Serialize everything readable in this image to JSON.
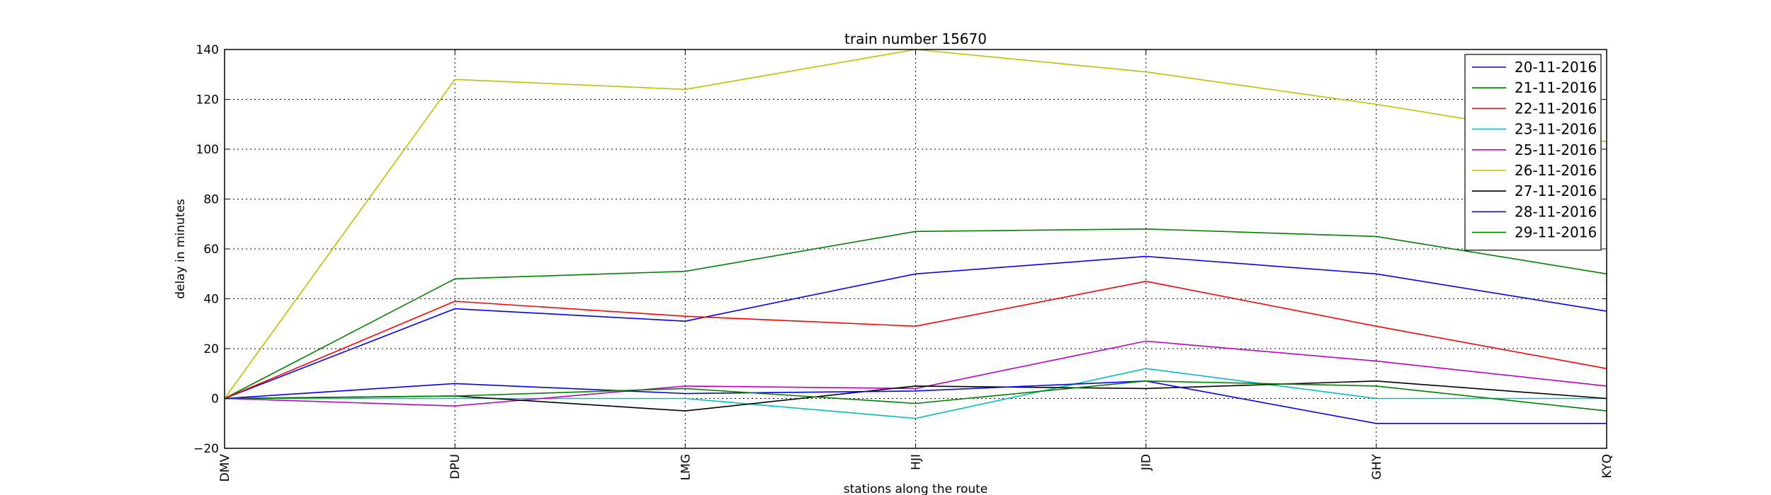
{
  "chart_data": {
    "type": "line",
    "title": "train number 15670",
    "xlabel": "stations along the route",
    "ylabel": "delay in minutes",
    "categories": [
      "DMV",
      "DPU",
      "LMG",
      "HJI",
      "JID",
      "GHY",
      "KYQ"
    ],
    "ylim": [
      -20,
      140
    ],
    "yticks": [
      -20,
      0,
      20,
      40,
      60,
      80,
      100,
      120,
      140
    ],
    "grid": true,
    "legend_position": "top-right",
    "series": [
      {
        "name": "20-11-2016",
        "color": "#0000ff",
        "values": [
          0,
          36,
          31,
          50,
          57,
          50,
          35
        ]
      },
      {
        "name": "21-11-2016",
        "color": "#008000",
        "values": [
          0,
          48,
          51,
          67,
          68,
          65,
          50
        ]
      },
      {
        "name": "22-11-2016",
        "color": "#ff0000",
        "values": [
          0,
          39,
          33,
          29,
          47,
          29,
          12
        ]
      },
      {
        "name": "23-11-2016",
        "color": "#00bfbf",
        "values": [
          0,
          0,
          0,
          -8,
          12,
          0,
          0
        ]
      },
      {
        "name": "25-11-2016",
        "color": "#bf00bf",
        "values": [
          0,
          -3,
          5,
          4,
          23,
          15,
          5
        ]
      },
      {
        "name": "26-11-2016",
        "color": "#bfbf00",
        "values": [
          0,
          128,
          124,
          140,
          131,
          118,
          103
        ]
      },
      {
        "name": "27-11-2016",
        "color": "#000000",
        "values": [
          0,
          1,
          -5,
          5,
          4,
          7,
          0
        ]
      },
      {
        "name": "28-11-2016",
        "color": "#0000ff",
        "values": [
          0,
          6,
          2,
          3,
          7,
          -10,
          -10
        ]
      },
      {
        "name": "29-11-2016",
        "color": "#008000",
        "values": [
          0,
          1,
          4,
          -2,
          7,
          5,
          -5
        ]
      }
    ]
  }
}
